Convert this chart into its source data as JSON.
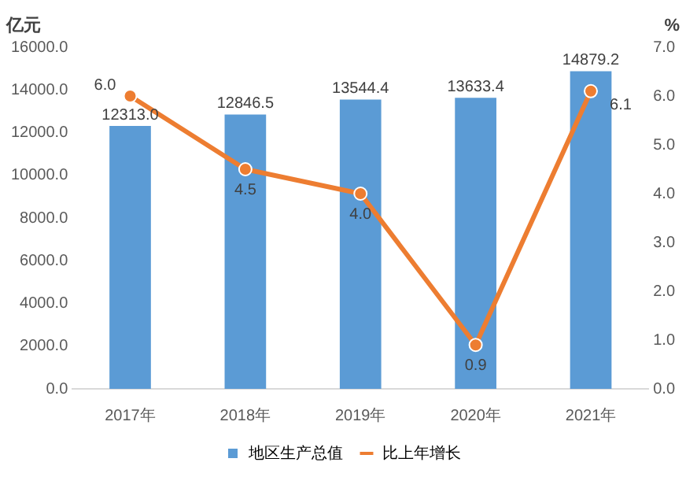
{
  "chart_data": {
    "type": "bar",
    "ylabel": "亿元",
    "y2label": "%",
    "categories": [
      "2017年",
      "2018年",
      "2019年",
      "2020年",
      "2021年"
    ],
    "series": [
      {
        "name": "地区生产总值",
        "color": "#5b9bd5",
        "values": [
          12313.0,
          12846.5,
          13544.4,
          13633.4,
          14879.2
        ],
        "value_labels": [
          "12313.0",
          "12846.5",
          "13544.4",
          "13633.4",
          "14879.2"
        ]
      },
      {
        "name": "比上年增长",
        "type": "line",
        "axis": "y2",
        "color": "#ed7d31",
        "marker": "circle",
        "values": [
          6.0,
          4.5,
          4.0,
          0.9,
          6.1
        ],
        "value_labels": [
          "6.0",
          "4.5",
          "4.0",
          "0.9",
          "6.1"
        ]
      }
    ],
    "ylim": [
      0,
      16000
    ],
    "yticks": [
      {
        "value": 0,
        "label": "0.0"
      },
      {
        "value": 2000,
        "label": "2000.0"
      },
      {
        "value": 4000,
        "label": "4000.0"
      },
      {
        "value": 6000,
        "label": "6000.0"
      },
      {
        "value": 8000,
        "label": "8000.0"
      },
      {
        "value": 10000,
        "label": "10000.0"
      },
      {
        "value": 12000,
        "label": "12000.0"
      },
      {
        "value": 14000,
        "label": "14000.0"
      },
      {
        "value": 16000,
        "label": "16000.0"
      }
    ],
    "y2lim": [
      0,
      7
    ],
    "y2ticks": [
      {
        "value": 0,
        "label": "0.0"
      },
      {
        "value": 1,
        "label": "1.0"
      },
      {
        "value": 2,
        "label": "2.0"
      },
      {
        "value": 3,
        "label": "3.0"
      },
      {
        "value": 4,
        "label": "4.0"
      },
      {
        "value": 5,
        "label": "5.0"
      },
      {
        "value": 6,
        "label": "6.0"
      },
      {
        "value": 7,
        "label": "7.0"
      }
    ],
    "data_labels": true,
    "grid": false,
    "legend": "bottom"
  }
}
